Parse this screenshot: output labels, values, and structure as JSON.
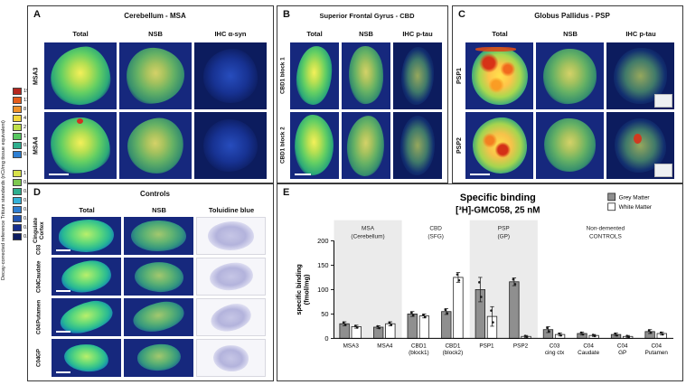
{
  "scalebar": {
    "label": "Decay-corrected reference Tritium standards (nCi/mg tissue equivalent)",
    "bars": [
      [
        {
          "value": "19",
          "color": "#b5271f"
        },
        {
          "value": "11",
          "color": "#e55c1c"
        },
        {
          "value": "8",
          "color": "#f0922c"
        },
        {
          "value": "4",
          "color": "#f3d83c"
        },
        {
          "value": "2",
          "color": "#bfe04a"
        },
        {
          "value": "1",
          "color": "#58c860"
        },
        {
          "value": "0.8",
          "color": "#2fae8e"
        },
        {
          "value": "0.5",
          "color": "#2e7fd2"
        }
      ],
      [
        {
          "value": "1",
          "color": "#d8e24a"
        },
        {
          "value": "0.8",
          "color": "#7ec850"
        },
        {
          "value": "0.5",
          "color": "#2fae8e"
        },
        {
          "value": "0.3",
          "color": "#35b2d8"
        },
        {
          "value": "0.2",
          "color": "#2f7fd2"
        },
        {
          "value": "0.1",
          "color": "#2355b2"
        },
        {
          "value": "0.05",
          "color": "#172f8e"
        },
        {
          "value": "0.02",
          "color": "#0d1d60"
        }
      ]
    ]
  },
  "panels": {
    "A": {
      "label": "A",
      "title": "Cerebellum - MSA",
      "columns": [
        "Total",
        "NSB",
        "IHC α-syn"
      ],
      "rows": [
        "MSA3",
        "MSA4"
      ]
    },
    "B": {
      "label": "B",
      "title": "Superior Frontal Gyrus - CBD",
      "columns": [
        "Total",
        "NSB",
        "IHC p-tau"
      ],
      "rows": [
        "CBD1 block 1",
        "CBD1 block 2"
      ]
    },
    "C": {
      "label": "C",
      "title": "Globus Pallidus - PSP",
      "columns": [
        "Total",
        "NSB",
        "IHC p-tau"
      ],
      "rows": [
        "PSP1",
        "PSP2"
      ]
    },
    "D": {
      "label": "D",
      "title": "Controls",
      "columns": [
        "Total",
        "NSB",
        "Toluidine blue"
      ],
      "rows": [
        {
          "id": "C03",
          "region": "Cingulate Cortex"
        },
        {
          "id": "C04",
          "region": "Caudate"
        },
        {
          "id": "C04",
          "region": "Putamen"
        },
        {
          "id": "C04",
          "region": "GP"
        }
      ]
    },
    "E": {
      "label": "E"
    }
  },
  "chart_data": {
    "type": "bar",
    "title": "Specific binding [³H]-GMC058, 25 nM",
    "title_line1": "Specific binding",
    "title_line2": "[³H]-GMC058, 25 nM",
    "ylabel": "specific binding (fmol/mg)",
    "ylabel_line1": "specific binding",
    "ylabel_line2": "(fmol/mg)",
    "ylim": [
      0,
      200
    ],
    "yticks": [
      0,
      50,
      100,
      150,
      200
    ],
    "legend": [
      {
        "label": "Grey Matter",
        "color": "#8f8f8f"
      },
      {
        "label": "White Matter",
        "color": "#ffffff"
      }
    ],
    "groups": [
      {
        "label": "MSA (Cerebellum)",
        "label_lines": [
          "MSA",
          "(Cerebellum)"
        ],
        "span": [
          0,
          1
        ],
        "shaded": true
      },
      {
        "label": "CBD (SFG)",
        "label_lines": [
          "CBD",
          "(SFG)"
        ],
        "span": [
          2,
          3
        ],
        "shaded": false
      },
      {
        "label": "PSP (GP)",
        "label_lines": [
          "PSP",
          "(GP)"
        ],
        "span": [
          4,
          5
        ],
        "shaded": true
      },
      {
        "label": "Non-demented CONTROLS",
        "label_lines": [
          "Non-demented",
          "CONTROLS"
        ],
        "span": [
          6,
          9
        ],
        "shaded": false
      }
    ],
    "categories": [
      "MSA3",
      "MSA4",
      "CBD1 (block1)",
      "CBD1 (block2)",
      "PSP1",
      "PSP2",
      "C03 cing ctx",
      "C04 Caudate",
      "C04 GP",
      "C04 Putamen"
    ],
    "cat_labels": [
      [
        "MSA3"
      ],
      [
        "MSA4"
      ],
      [
        "CBD1",
        "(block1)"
      ],
      [
        "CBD1",
        "(block2)"
      ],
      [
        "PSP1"
      ],
      [
        "PSP2"
      ],
      [
        "C03",
        "cing ctx"
      ],
      [
        "C04",
        "Caudate"
      ],
      [
        "C04",
        "GP"
      ],
      [
        "C04",
        "Putamen"
      ]
    ],
    "series": [
      {
        "name": "Grey Matter",
        "values": [
          30,
          23,
          50,
          55,
          100,
          116,
          18,
          10,
          8,
          14
        ],
        "errors": [
          4,
          3,
          5,
          6,
          25,
          8,
          6,
          3,
          3,
          4
        ]
      },
      {
        "name": "White Matter",
        "values": [
          24,
          30,
          46,
          125,
          45,
          4,
          8,
          6,
          4,
          10
        ],
        "errors": [
          3,
          4,
          4,
          10,
          20,
          2,
          3,
          2,
          2,
          3
        ]
      }
    ]
  }
}
